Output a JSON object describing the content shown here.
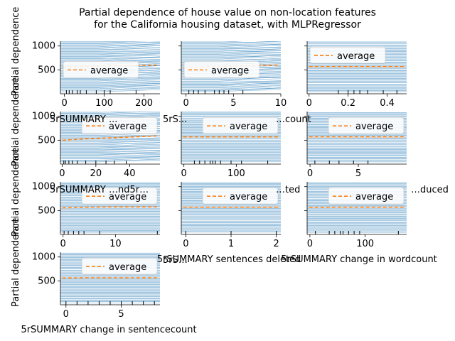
{
  "chart_data": {
    "type": "line",
    "title": "Partial dependence of house value on non-location features\nfor the California housing dataset, with MLPRegressor",
    "legend": {
      "label": "average",
      "placement": "top-right",
      "average_color": "#ff7f0e",
      "ice_color": "#1f77b4"
    },
    "ylabel": "Partial dependence",
    "ylim": [
      0,
      1100
    ],
    "yticks": [
      500,
      1000
    ],
    "panels": [
      {
        "xlabel": "5rSUMMARY …",
        "xlim": [
          -10,
          240
        ],
        "xticks": [
          0,
          100,
          200
        ],
        "rug": [
          5,
          12,
          20,
          32,
          40,
          55,
          80,
          100,
          115,
          180
        ],
        "average_y": [
          560,
          575,
          585,
          595,
          600
        ],
        "legend_y": 500,
        "has_yticks": true,
        "has_ylabel": true
      },
      {
        "xlabel": "5rSUMMARY …",
        "xlim": [
          -0.5,
          10
        ],
        "xticks": [
          0,
          5,
          10
        ],
        "rug": [
          0.3,
          0.8,
          1.3,
          2,
          3,
          3.5,
          4,
          4.5,
          6
        ],
        "average_y": [
          545,
          565,
          580,
          590,
          600
        ],
        "legend_y": 500,
        "has_yticks": false,
        "has_ylabel": false
      },
      {
        "xlabel": "…",
        "xlim": [
          -0.01,
          0.5
        ],
        "xticks": [
          0.0,
          0.2,
          0.4
        ],
        "rug": [
          0.15,
          0.2,
          0.23,
          0.26,
          0.3,
          0.38,
          0.45
        ],
        "average_y": [
          570,
          570,
          570,
          570,
          570
        ],
        "legend_y": 800,
        "has_yticks": false,
        "has_ylabel": false
      },
      {
        "xlabel": "5rSUMMARY …",
        "xlim": [
          -1,
          58
        ],
        "xticks": [
          0,
          20,
          40
        ],
        "rug": [
          1,
          2,
          4,
          6,
          9,
          14,
          20,
          26,
          31,
          38
        ],
        "average_y": [
          500,
          530,
          550,
          570,
          590
        ],
        "legend_y": 800,
        "has_yticks": true,
        "has_ylabel": true
      },
      {
        "xlabel": "5rSUMMARY …",
        "xlim": [
          -5,
          185
        ],
        "xticks": [
          0,
          100
        ],
        "rug": [
          20,
          30,
          40,
          50,
          55,
          60,
          70,
          90,
          110,
          160
        ],
        "average_y": [
          570,
          570,
          570,
          570,
          570
        ],
        "legend_y": 800,
        "has_yticks": false,
        "has_ylabel": false
      },
      {
        "xlabel": "…",
        "xlim": [
          -0.3,
          10
        ],
        "xticks": [
          0,
          5
        ],
        "rug": [
          0.5,
          2,
          3,
          4.5,
          6
        ],
        "average_y": [
          570,
          570,
          570,
          570,
          570
        ],
        "legend_y": 800,
        "has_yticks": false,
        "has_ylabel": false
      },
      {
        "xlabel": "5rSUMMARY …",
        "xlim": [
          -0.5,
          18.5
        ],
        "xticks": [
          0,
          10
        ],
        "rug": [
          0.2,
          1,
          2,
          3,
          4,
          7,
          18
        ],
        "average_y": [
          555,
          570,
          575,
          575,
          575
        ],
        "legend_y": 800,
        "has_yticks": true,
        "has_ylabel": true
      },
      {
        "xlabel": "5rSUMMARY sentences deleted",
        "xlim": [
          -0.1,
          2.1
        ],
        "xticks": [
          0,
          1,
          2
        ],
        "rug": [
          0,
          1,
          2
        ],
        "average_y": [
          570,
          570,
          570,
          570,
          570
        ],
        "legend_y": 800,
        "has_yticks": false,
        "has_ylabel": false
      },
      {
        "xlabel": "5rSUMMARY change in wordcount",
        "xlim": [
          -5,
          175
        ],
        "xticks": [
          0,
          100
        ],
        "rug": [
          10,
          35,
          45,
          55,
          60,
          70,
          80,
          90,
          160
        ],
        "average_y": [
          565,
          570,
          570,
          570,
          570
        ],
        "legend_y": 800,
        "has_yticks": false,
        "has_ylabel": false
      },
      {
        "xlabel": "5rSUMMARY change in sentencecount",
        "xlim": [
          -0.5,
          8.5
        ],
        "xticks": [
          0,
          5
        ],
        "rug": [
          0,
          1,
          2,
          3,
          4,
          5,
          6,
          7,
          8
        ],
        "average_y": [
          560,
          565,
          565,
          565,
          565
        ],
        "legend_y": 800,
        "has_yticks": true,
        "has_ylabel": true
      }
    ],
    "overlap_labels": [
      {
        "text": "5rSUMMARY ...",
        "anchor": "start"
      },
      {
        "text": "5rS...",
        "anchor": "start"
      },
      {
        "text": "…count",
        "anchor": "start"
      },
      {
        "text": "5rSUMMARY …nd5r…",
        "anchor": "start"
      },
      {
        "text": "…ted",
        "anchor": "start"
      },
      {
        "text": "5rS…",
        "anchor": "start"
      },
      {
        "text": "…duced",
        "anchor": "start"
      }
    ]
  }
}
